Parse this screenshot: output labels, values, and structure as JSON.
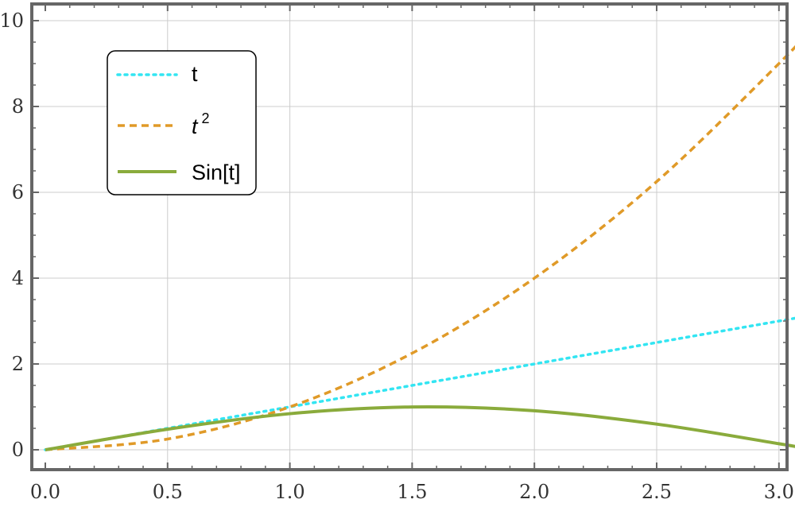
{
  "chart_data": {
    "type": "line",
    "title": "",
    "xlabel": "",
    "ylabel": "",
    "xlim": [
      0,
      3.14159
    ],
    "ylim": [
      0,
      10
    ],
    "grid": true,
    "legend_position": "top-left",
    "x_ticks": [
      "0.0",
      "0.5",
      "1.0",
      "1.5",
      "2.0",
      "2.5",
      "3.0"
    ],
    "y_ticks": [
      "0",
      "2",
      "4",
      "6",
      "8",
      "10"
    ],
    "series": [
      {
        "name": "t",
        "style": "dotted",
        "color": "#33e5f2",
        "x": [
          0,
          0.5,
          1.0,
          1.5,
          2.0,
          2.5,
          3.0,
          3.14159
        ],
        "y": [
          0,
          0.5,
          1.0,
          1.5,
          2.0,
          2.5,
          3.0,
          3.14159
        ]
      },
      {
        "name": "t²",
        "style": "dashed",
        "color": "#e09a28",
        "x": [
          0,
          0.5,
          1.0,
          1.5,
          2.0,
          2.5,
          3.0,
          3.14159
        ],
        "y": [
          0,
          0.25,
          1.0,
          2.25,
          4.0,
          6.25,
          9.0,
          9.8696
        ]
      },
      {
        "name": "Sin[t]",
        "style": "solid",
        "color": "#8aab3c",
        "x": [
          0,
          0.5,
          1.0,
          1.5,
          2.0,
          2.5,
          3.0,
          3.14159
        ],
        "y": [
          0,
          0.4794,
          0.8415,
          0.9975,
          0.9093,
          0.5985,
          0.1411,
          0
        ]
      }
    ]
  },
  "legend": {
    "items": [
      {
        "label": "t",
        "color": "#33e5f2",
        "style": "dotted"
      },
      {
        "label_base": "t",
        "label_sup": "2",
        "color": "#e09a28",
        "style": "dashed"
      },
      {
        "label": "Sin[t]",
        "color": "#8aab3c",
        "style": "solid"
      }
    ]
  },
  "colors": {
    "frame": "#666666",
    "grid": "#cccccc"
  }
}
